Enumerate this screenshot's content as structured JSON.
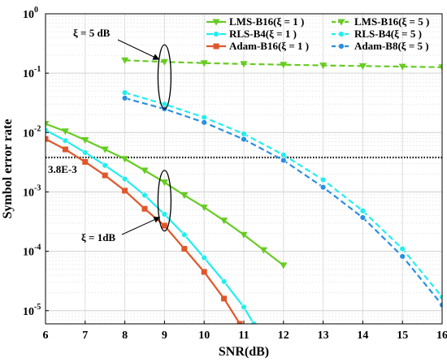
{
  "chart_data": {
    "type": "line",
    "title": "",
    "xlabel": "SNR(dB)",
    "ylabel": "Symbol error rate",
    "x_scale": "linear",
    "y_scale": "log",
    "xlim": [
      6,
      16
    ],
    "ylim": [
      6e-06,
      1
    ],
    "x_ticks": [
      6,
      7,
      8,
      9,
      10,
      11,
      12,
      13,
      14,
      15,
      16
    ],
    "y_ticks": [
      {
        "value": 1,
        "base": "10",
        "exp": "0"
      },
      {
        "value": 0.1,
        "base": "10",
        "exp": "-1"
      },
      {
        "value": 0.01,
        "base": "10",
        "exp": "-2"
      },
      {
        "value": 0.001,
        "base": "10",
        "exp": "-3"
      },
      {
        "value": 0.0001,
        "base": "10",
        "exp": "-4"
      },
      {
        "value": 1e-05,
        "base": "10",
        "exp": "-5"
      }
    ],
    "grid": true,
    "legend_position": "top-right",
    "series": [
      {
        "name": "LMS-B16(ξ = 1 )",
        "color": "#66cc22",
        "marker": "triangle-down",
        "dash": "solid",
        "x": [
          6,
          6.5,
          7,
          7.5,
          8,
          8.5,
          9,
          9.5,
          10,
          10.5,
          11,
          11.5,
          12
        ],
        "y": [
          0.014,
          0.0105,
          0.0075,
          0.0052,
          0.0036,
          0.0023,
          0.00145,
          0.00088,
          0.00055,
          0.00033,
          0.00019,
          0.000105,
          5.8e-05
        ]
      },
      {
        "name": "LMS-B16(ξ = 5 )",
        "color": "#66cc22",
        "marker": "triangle-down",
        "dash": "dashed",
        "x": [
          8,
          9,
          10,
          11,
          12,
          13,
          14,
          15,
          16
        ],
        "y": [
          0.165,
          0.155,
          0.148,
          0.143,
          0.139,
          0.135,
          0.132,
          0.129,
          0.126
        ]
      },
      {
        "name": "RLS-B4(ξ = 1 )",
        "color": "#22eeee",
        "marker": "circle",
        "dash": "solid",
        "x": [
          6,
          6.5,
          7,
          7.5,
          8,
          8.5,
          9,
          9.5,
          10,
          10.5,
          11,
          11.25
        ],
        "y": [
          0.011,
          0.0073,
          0.0046,
          0.0028,
          0.00165,
          0.00088,
          0.00042,
          0.00019,
          7.8e-05,
          3.1e-05,
          1.15e-05,
          6e-06
        ]
      },
      {
        "name": "RLS-B4(ξ = 5 )",
        "color": "#22eeee",
        "marker": "circle",
        "dash": "dashed",
        "x": [
          8,
          9,
          10,
          11,
          12,
          13,
          14,
          15,
          16
        ],
        "y": [
          0.047,
          0.03,
          0.018,
          0.0095,
          0.0042,
          0.0016,
          0.00048,
          0.00011,
          1.7e-05
        ]
      },
      {
        "name": "Adam-B16(ξ = 1 )",
        "color": "#e0572a",
        "marker": "square",
        "dash": "solid",
        "x": [
          6,
          6.5,
          7,
          7.5,
          8,
          8.5,
          9,
          9.5,
          10,
          10.5,
          10.9
        ],
        "y": [
          0.0078,
          0.0052,
          0.0032,
          0.0019,
          0.00105,
          0.00052,
          0.00027,
          0.00011,
          4.5e-05,
          1.6e-05,
          6e-06
        ]
      },
      {
        "name": "Adam-B8(ξ = 5 )",
        "color": "#2a8fe0",
        "marker": "circle",
        "dash": "dashed",
        "x": [
          8,
          9,
          10,
          11,
          12,
          13,
          14,
          15,
          16
        ],
        "y": [
          0.038,
          0.025,
          0.0148,
          0.0077,
          0.0034,
          0.0012,
          0.00037,
          8.2e-05,
          1.25e-05
        ]
      }
    ],
    "reference_line": {
      "y": 0.0038,
      "label": "3.8E-3",
      "style": "dotted",
      "color": "#000000"
    },
    "annotations": [
      {
        "text": "ξ = 5 dB",
        "target": "ellipse at SNR 9 dB around ξ = 5 curves",
        "ellipse_x": 9,
        "ellipse_y_range": [
          0.025,
          0.3
        ]
      },
      {
        "text": "ξ = 1dB",
        "target": "ellipse at SNR 9 dB around ξ = 1 curves",
        "ellipse_x": 9,
        "ellipse_y_range": [
          0.00022,
          0.0023
        ]
      }
    ]
  }
}
